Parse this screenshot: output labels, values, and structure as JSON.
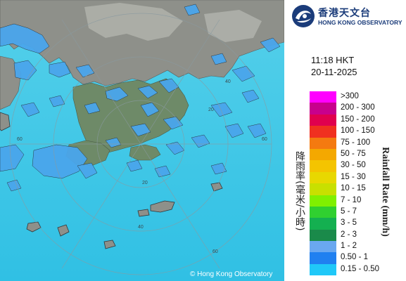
{
  "organization": {
    "name_zh": "香港天文台",
    "name_en": "HONG KONG OBSERVATORY"
  },
  "timestamp": {
    "time": "11:18 HKT",
    "date": "20-11-2025"
  },
  "legend": {
    "title_en": "Rainfall Rate (mm/h)",
    "title_zh": "降雨率(毫米/小時)",
    "entries": [
      {
        "label": ">300",
        "color": "#ff00ff"
      },
      {
        "label": "200 - 300",
        "color": "#c8008c"
      },
      {
        "label": "150 - 200",
        "color": "#e0004e"
      },
      {
        "label": "100 - 150",
        "color": "#f03020"
      },
      {
        "label": "75 - 100",
        "color": "#f47a10"
      },
      {
        "label": "50 - 75",
        "color": "#f4a800"
      },
      {
        "label": "30 - 50",
        "color": "#f4c400"
      },
      {
        "label": "15 - 30",
        "color": "#e8d800"
      },
      {
        "label": "10 - 15",
        "color": "#c8e000"
      },
      {
        "label": "7 - 10",
        "color": "#80f000"
      },
      {
        "label": "5 - 7",
        "color": "#30d030"
      },
      {
        "label": "3 - 5",
        "color": "#14b050"
      },
      {
        "label": "2 - 3",
        "color": "#1a8a4a"
      },
      {
        "label": "1 - 2",
        "color": "#6aa8f0"
      },
      {
        "label": "0.50 - 1",
        "color": "#2080f0"
      },
      {
        "label": "0.15 - 0.50",
        "color": "#20c8f8"
      }
    ]
  },
  "map": {
    "range_rings": [
      "20",
      "40",
      "60",
      "20",
      "40",
      "60",
      "60"
    ],
    "copyright": "© Hong Kong Observatory",
    "sea_color": "#3cc8e6",
    "land_color": "#8a8c86"
  }
}
